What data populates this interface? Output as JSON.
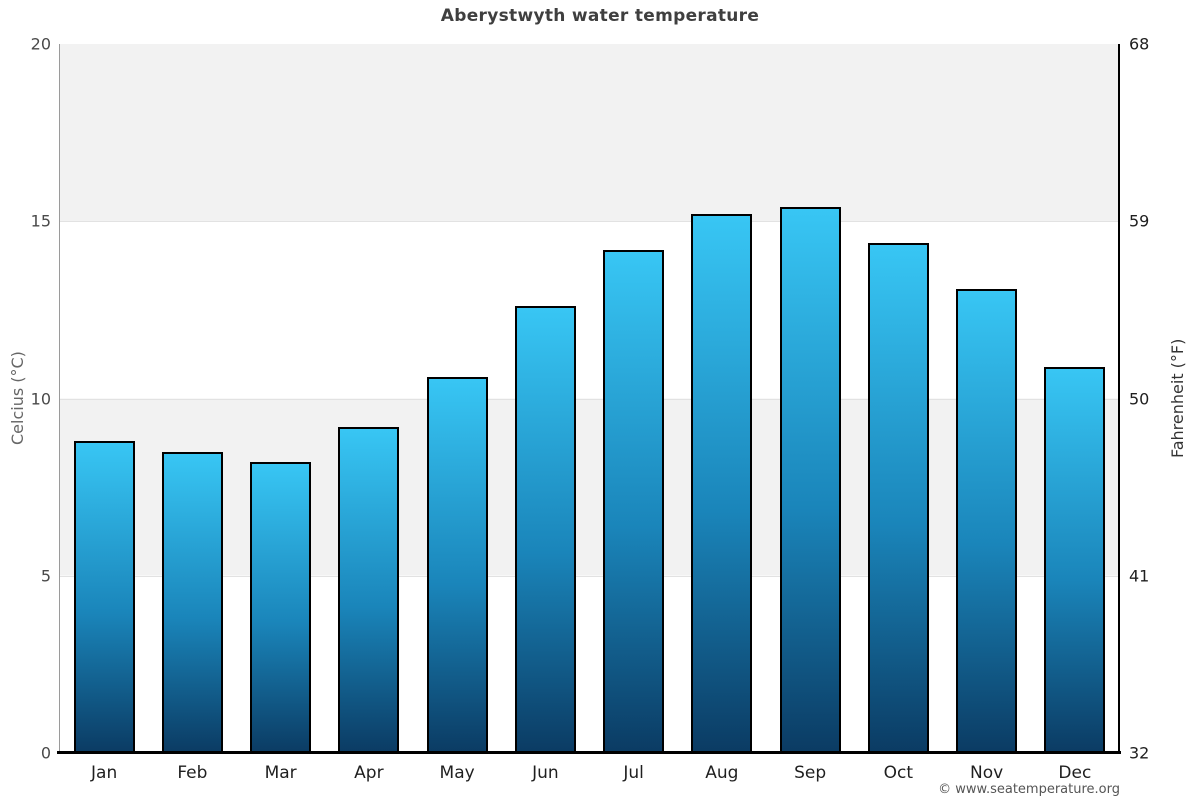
{
  "chart_data": {
    "type": "bar",
    "title": "Aberystwyth water temperature",
    "categories": [
      "Jan",
      "Feb",
      "Mar",
      "Apr",
      "May",
      "Jun",
      "Jul",
      "Aug",
      "Sep",
      "Oct",
      "Nov",
      "Dec"
    ],
    "values": [
      8.8,
      8.5,
      8.2,
      9.2,
      10.6,
      12.6,
      14.2,
      15.2,
      15.4,
      14.4,
      13.1,
      10.9
    ],
    "ylabel_left": "Celcius (°C)",
    "ylabel_right": "Fahrenheit (°F)",
    "yticks_left": [
      0,
      5,
      10,
      15,
      20
    ],
    "yticks_right": [
      32,
      41,
      50,
      59,
      68
    ],
    "ylim": [
      0,
      20
    ],
    "grid": "alternating horizontal gray bands every 5 °C, gridlines at 5/10/15",
    "legend": "none",
    "colors": {
      "bar_gradient_top": "#38c6f4",
      "bar_gradient_bottom": "#0b3b63",
      "bar_border": "#000000",
      "band_gray": "#f2f2f2",
      "gridline": "#e2e2e2",
      "left_axis_line": "#9a9a9a",
      "right_axis_line": "#000000",
      "title_color": "#3f3f3f"
    }
  },
  "footer": {
    "credit": "© www.seatemperature.org"
  }
}
